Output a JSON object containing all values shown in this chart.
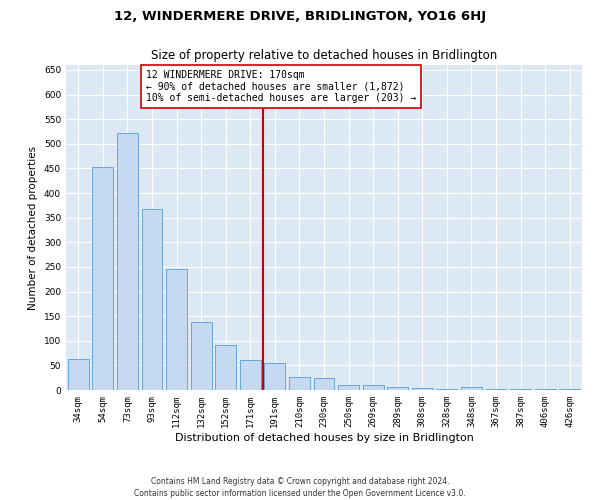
{
  "title": "12, WINDERMERE DRIVE, BRIDLINGTON, YO16 6HJ",
  "subtitle": "Size of property relative to detached houses in Bridlington",
  "xlabel": "Distribution of detached houses by size in Bridlington",
  "ylabel": "Number of detached properties",
  "categories": [
    "34sqm",
    "54sqm",
    "73sqm",
    "93sqm",
    "112sqm",
    "132sqm",
    "152sqm",
    "171sqm",
    "191sqm",
    "210sqm",
    "230sqm",
    "250sqm",
    "269sqm",
    "289sqm",
    "308sqm",
    "328sqm",
    "348sqm",
    "367sqm",
    "387sqm",
    "406sqm",
    "426sqm"
  ],
  "values": [
    62,
    453,
    522,
    368,
    246,
    139,
    92,
    60,
    54,
    26,
    25,
    10,
    10,
    7,
    5,
    3,
    6,
    3,
    3,
    2,
    2
  ],
  "bar_color": "#c5d9f0",
  "bar_edge_color": "#5b9bd5",
  "highlight_line_index": 7,
  "highlight_line_color": "#cc0000",
  "ylim": [
    0,
    660
  ],
  "yticks": [
    0,
    50,
    100,
    150,
    200,
    250,
    300,
    350,
    400,
    450,
    500,
    550,
    600,
    650
  ],
  "background_color": "#dde8f5",
  "grid_color": "#ffffff",
  "legend_text_line1": "12 WINDERMERE DRIVE: 170sqm",
  "legend_text_line2": "← 90% of detached houses are smaller (1,872)",
  "legend_text_line3": "10% of semi-detached houses are larger (203) →",
  "footer_line1": "Contains HM Land Registry data © Crown copyright and database right 2024.",
  "footer_line2": "Contains public sector information licensed under the Open Government Licence v3.0.",
  "title_fontsize": 9.5,
  "subtitle_fontsize": 8.5,
  "xlabel_fontsize": 8,
  "ylabel_fontsize": 7.5,
  "tick_fontsize": 6.5,
  "legend_fontsize": 7,
  "footer_fontsize": 5.5
}
